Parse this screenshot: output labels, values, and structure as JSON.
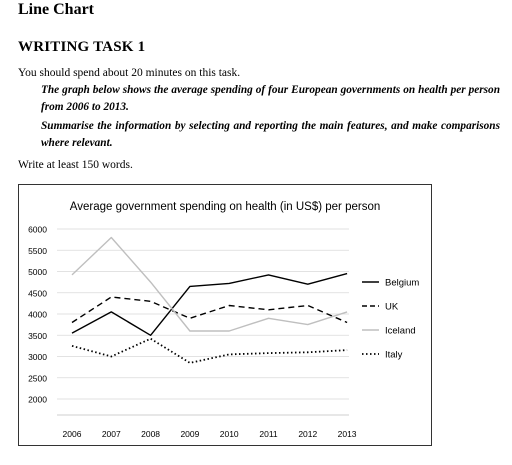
{
  "page": {
    "section_heading": "Line Chart",
    "task_heading": "WRITING TASK 1",
    "instruction": "You should spend about 20 minutes on this task.",
    "prompt_1": "The graph below shows the average spending of four European governments on health per person from 2006 to 2013.",
    "prompt_2": "Summarise the information by selecting and reporting the main features, and make comparisons where relevant.",
    "word_count": "Write at least 150 words."
  },
  "chart_data": {
    "type": "line",
    "title": "Average government spending on health (in US$) per person",
    "xlabel": "",
    "ylabel": "",
    "x": [
      "2006",
      "2007",
      "2008",
      "2009",
      "2010",
      "2011",
      "2012",
      "2013"
    ],
    "ylim": [
      2000,
      6000
    ],
    "yticks": [
      6000,
      5500,
      5000,
      4500,
      4000,
      3500,
      3000,
      2500,
      2000
    ],
    "grid": true,
    "legend_position": "right",
    "series": [
      {
        "name": "Belgium",
        "style": "solid",
        "color": "#000000",
        "values": [
          3550,
          4050,
          3500,
          4650,
          4720,
          4920,
          4700,
          4950
        ]
      },
      {
        "name": "UK",
        "style": "dashed",
        "color": "#000000",
        "values": [
          3800,
          4400,
          4300,
          3900,
          4200,
          4100,
          4200,
          3800
        ]
      },
      {
        "name": "Iceland",
        "style": "solid",
        "color": "#bfbfbf",
        "values": [
          4920,
          5800,
          4750,
          3600,
          3600,
          3900,
          3750,
          4050
        ]
      },
      {
        "name": "Italy",
        "style": "dotted",
        "color": "#000000",
        "values": [
          3250,
          3000,
          3420,
          2850,
          3050,
          3080,
          3100,
          3150
        ]
      }
    ]
  }
}
